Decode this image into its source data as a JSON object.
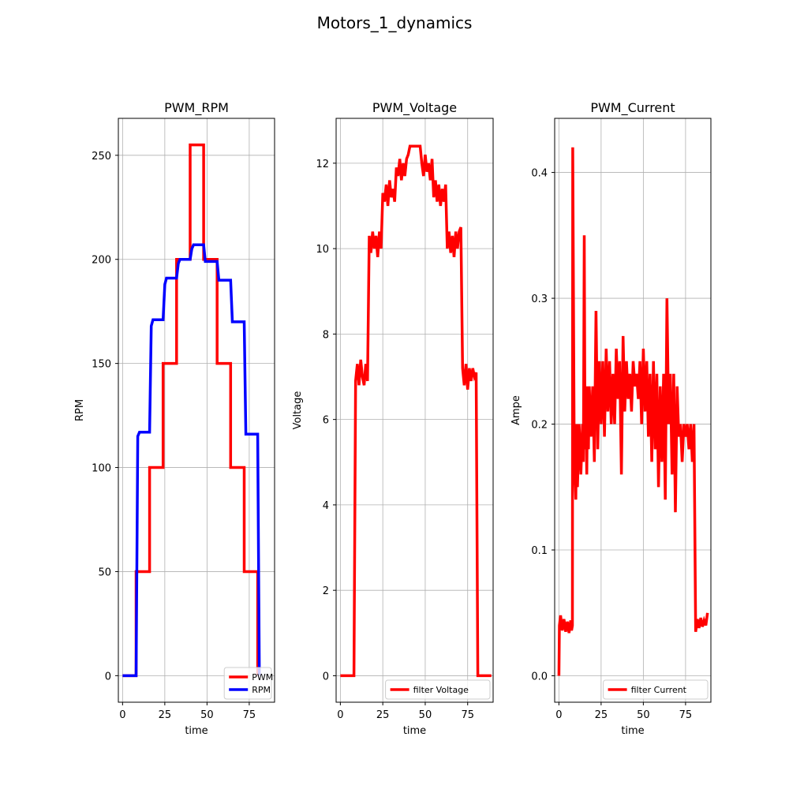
{
  "figure": {
    "suptitle": "Motors_1_dynamics"
  },
  "chart_data": [
    {
      "type": "line",
      "title": "PWM_RPM",
      "xlabel": "time",
      "ylabel": "RPM",
      "xlim": [
        -2.5,
        90
      ],
      "ylim": [
        -12.75,
        267.75
      ],
      "xticks": [
        0,
        25,
        50,
        75
      ],
      "yticks": [
        0,
        50,
        100,
        150,
        200,
        250
      ],
      "grid": true,
      "legend_position": "lower right",
      "series": [
        {
          "name": "PWM",
          "color": "#ff0000",
          "x": [
            0,
            8,
            8,
            16,
            16,
            24,
            24,
            32,
            32,
            40,
            40,
            48,
            48,
            56,
            56,
            64,
            64,
            72,
            72,
            80,
            80
          ],
          "y": [
            0,
            0,
            50,
            50,
            100,
            100,
            150,
            150,
            200,
            200,
            255,
            255,
            200,
            200,
            150,
            150,
            100,
            100,
            50,
            50,
            0
          ]
        },
        {
          "name": "RPM",
          "color": "#0000ff",
          "x": [
            0,
            8,
            9,
            10,
            16,
            17,
            18,
            24,
            25,
            26,
            32,
            33,
            34,
            40,
            41,
            42,
            48,
            49,
            50,
            56,
            57,
            58,
            64,
            65,
            66,
            72,
            73,
            74,
            80,
            81
          ],
          "y": [
            0,
            0,
            115,
            117,
            117,
            168,
            171,
            171,
            188,
            191,
            191,
            198,
            200,
            200,
            205,
            207,
            207,
            199,
            199,
            199,
            190,
            190,
            190,
            170,
            170,
            170,
            116,
            116,
            116,
            0
          ]
        }
      ]
    },
    {
      "type": "line",
      "title": "PWM_Voltage",
      "xlabel": "time",
      "ylabel": "Voltage",
      "xlim": [
        -2.5,
        90
      ],
      "ylim": [
        -0.62,
        13.05
      ],
      "xticks": [
        0,
        25,
        50,
        75
      ],
      "yticks": [
        0,
        2,
        4,
        6,
        8,
        10,
        12
      ],
      "grid": true,
      "legend_position": "lower right",
      "series": [
        {
          "name": "filter Voltage",
          "color": "#ff0000",
          "x": [
            0,
            8,
            9,
            10,
            11,
            12,
            13,
            14,
            15,
            16,
            17,
            18,
            19,
            20,
            21,
            22,
            23,
            24,
            25,
            26,
            27,
            28,
            29,
            30,
            31,
            32,
            33,
            34,
            35,
            36,
            37,
            38,
            39,
            40,
            41,
            42,
            43,
            44,
            45,
            46,
            47,
            48,
            49,
            50,
            51,
            52,
            53,
            54,
            55,
            56,
            57,
            58,
            59,
            60,
            61,
            62,
            63,
            64,
            65,
            66,
            67,
            68,
            69,
            70,
            71,
            72,
            73,
            74,
            75,
            76,
            77,
            78,
            79,
            80,
            81,
            82,
            83,
            86,
            89
          ],
          "y": [
            0,
            0,
            6.9,
            7.3,
            6.8,
            7.4,
            7.0,
            6.8,
            7.3,
            6.9,
            10.3,
            9.9,
            10.4,
            10.0,
            10.3,
            9.8,
            10.4,
            10.0,
            11.3,
            11.1,
            11.5,
            11.0,
            11.6,
            11.2,
            11.4,
            11.1,
            11.9,
            11.7,
            12.1,
            11.6,
            12.0,
            11.7,
            12.1,
            12.2,
            12.4,
            12.4,
            12.4,
            12.4,
            12.4,
            12.4,
            12.4,
            12.0,
            11.7,
            12.2,
            11.8,
            12.0,
            11.6,
            12.1,
            11.2,
            11.6,
            11.1,
            11.5,
            11.0,
            11.4,
            11.1,
            11.5,
            10.0,
            10.4,
            9.9,
            10.3,
            9.8,
            10.4,
            10.0,
            10.4,
            10.5,
            7.2,
            6.8,
            7.3,
            6.7,
            7.2,
            6.9,
            7.2,
            7.0,
            7.1,
            0,
            0,
            0,
            0,
            0
          ]
        }
      ]
    },
    {
      "type": "line",
      "title": "PWM_Current",
      "xlabel": "time",
      "ylabel": "Ampe",
      "xlim": [
        -2.5,
        90
      ],
      "ylim": [
        -0.021,
        0.443
      ],
      "xticks": [
        0,
        25,
        50,
        75
      ],
      "yticks": [
        0.0,
        0.1,
        0.2,
        0.3,
        0.4
      ],
      "grid": true,
      "legend_position": "lower right",
      "series": [
        {
          "name": "filter Current",
          "color": "#ff0000",
          "x": [
            0,
            0.3,
            1,
            2,
            3,
            4,
            5,
            6,
            7,
            7.5,
            8,
            8.2,
            9,
            9.5,
            10,
            10.5,
            11,
            12,
            13,
            14,
            14.5,
            15,
            15.5,
            16,
            16.5,
            17,
            17.5,
            18,
            19,
            20,
            21,
            22,
            23,
            24,
            25,
            26,
            27,
            28,
            29,
            30,
            31,
            32,
            33,
            34,
            35,
            36,
            37,
            38,
            39,
            40,
            41,
            42,
            43,
            44,
            45,
            46,
            47,
            48,
            49,
            50,
            51,
            52,
            53,
            54,
            55,
            56,
            57,
            58,
            59,
            60,
            61,
            62,
            63,
            64,
            65,
            66,
            67,
            68,
            69,
            70,
            71,
            72,
            73,
            74,
            75,
            76,
            77,
            78,
            79,
            80,
            81,
            82,
            83,
            84,
            85,
            86,
            87,
            88
          ],
          "y": [
            0,
            0.04,
            0.048,
            0.036,
            0.045,
            0.035,
            0.043,
            0.034,
            0.044,
            0.036,
            0.04,
            0.42,
            0.2,
            0.16,
            0.14,
            0.2,
            0.15,
            0.2,
            0.16,
            0.2,
            0.17,
            0.35,
            0.18,
            0.21,
            0.16,
            0.23,
            0.18,
            0.23,
            0.19,
            0.23,
            0.17,
            0.29,
            0.18,
            0.25,
            0.2,
            0.25,
            0.19,
            0.26,
            0.21,
            0.25,
            0.2,
            0.24,
            0.2,
            0.26,
            0.22,
            0.25,
            0.16,
            0.27,
            0.21,
            0.25,
            0.22,
            0.24,
            0.21,
            0.25,
            0.23,
            0.24,
            0.22,
            0.25,
            0.2,
            0.26,
            0.21,
            0.25,
            0.19,
            0.24,
            0.17,
            0.25,
            0.18,
            0.24,
            0.15,
            0.23,
            0.17,
            0.24,
            0.14,
            0.3,
            0.2,
            0.24,
            0.16,
            0.24,
            0.13,
            0.23,
            0.19,
            0.2,
            0.17,
            0.2,
            0.19,
            0.2,
            0.18,
            0.2,
            0.17,
            0.2,
            0.035,
            0.045,
            0.038,
            0.046,
            0.039,
            0.044,
            0.04,
            0.05
          ]
        }
      ]
    }
  ]
}
